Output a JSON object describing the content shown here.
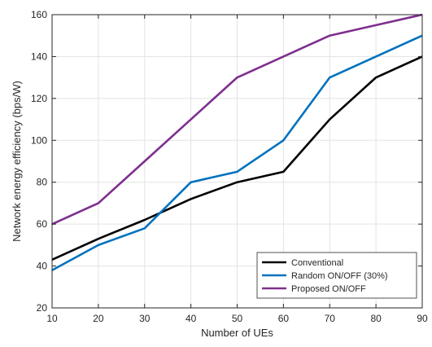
{
  "chart_data": {
    "type": "line",
    "title": "",
    "xlabel": "Number of UEs",
    "ylabel": "Network energy efficiency (bps/W)",
    "xlim": [
      10,
      90
    ],
    "ylim": [
      20,
      160
    ],
    "x_ticks": [
      10,
      20,
      30,
      40,
      50,
      60,
      70,
      80,
      90
    ],
    "y_ticks": [
      20,
      40,
      60,
      80,
      100,
      120,
      140,
      160
    ],
    "x": [
      10,
      20,
      30,
      40,
      50,
      60,
      70,
      80,
      90
    ],
    "grid": true,
    "legend_position": "bottom-right",
    "series": [
      {
        "name": "Conventional",
        "color": "#000000",
        "values": [
          43,
          53,
          62,
          72,
          80,
          85,
          110,
          130,
          140
        ]
      },
      {
        "name": "Random ON/OFF (30%)",
        "color": "#0072BD",
        "values": [
          38,
          50,
          58,
          80,
          85,
          100,
          130,
          140,
          150
        ]
      },
      {
        "name": "Proposed ON/OFF",
        "color": "#7E2F8E",
        "values": [
          60,
          70,
          90,
          110,
          130,
          140,
          150,
          155,
          160
        ]
      }
    ]
  }
}
